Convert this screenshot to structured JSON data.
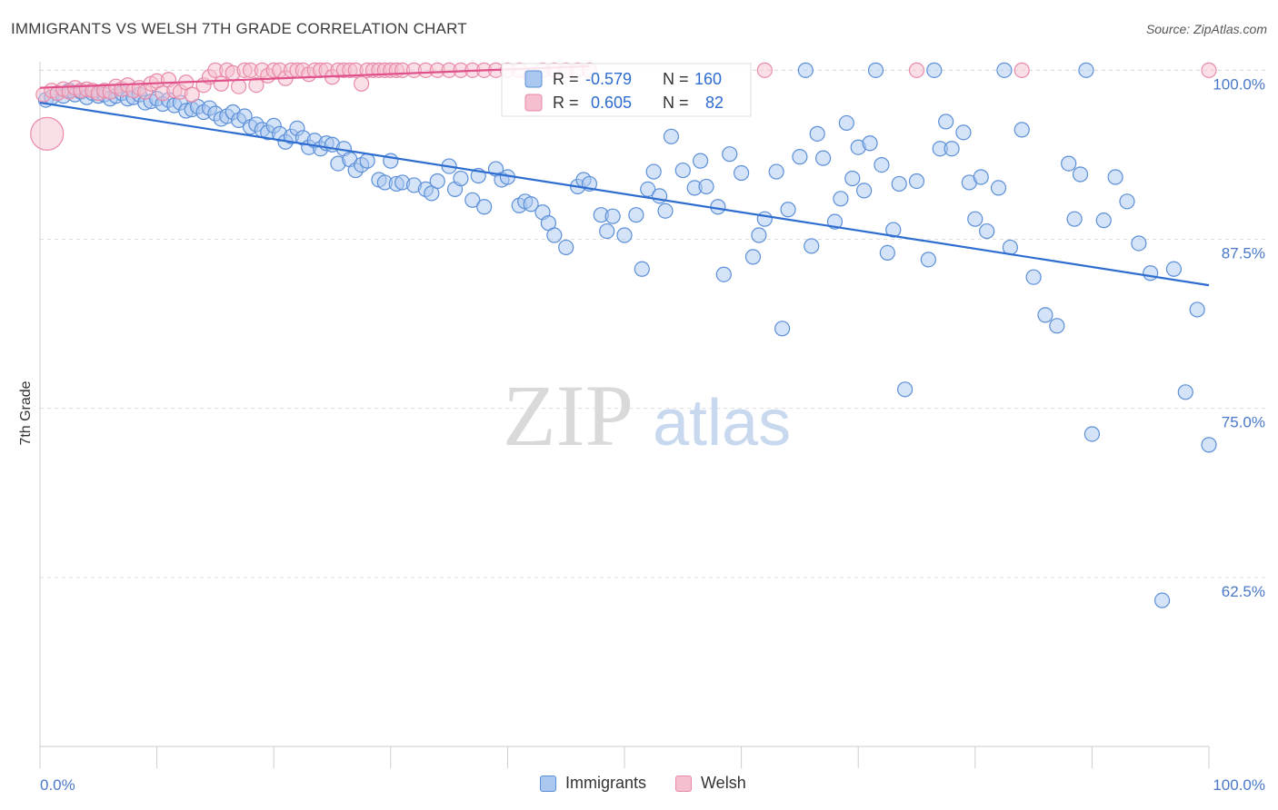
{
  "header": {
    "title": "IMMIGRANTS VS WELSH 7TH GRADE CORRELATION CHART",
    "source": "Source: ZipAtlas.com"
  },
  "watermark": {
    "zip": "ZIP",
    "atlas": "atlas"
  },
  "colors": {
    "blue_fill": "#aac7ef",
    "blue_stroke": "#5b8fd8",
    "blue_line": "#2e6dd0",
    "pink_fill": "#f6bfd0",
    "pink_stroke": "#e88aa8",
    "pink_line": "#e0508a",
    "grid": "#dddddd",
    "axis_label": "#4a78c8"
  },
  "legend": {
    "rows": [
      {
        "r_label": "R =",
        "r_value": "-0.579",
        "n_label": "N =",
        "n_value": "160"
      },
      {
        "r_label": "R =",
        "r_value": "0.605",
        "n_label": "N =",
        "n_value": "82"
      }
    ]
  },
  "bottom_legend": [
    {
      "label": "Immigrants"
    },
    {
      "label": "Welsh"
    }
  ],
  "chart_data": {
    "type": "scatter",
    "title": "IMMIGRANTS VS WELSH 7TH GRADE CORRELATION CHART",
    "xlabel": "",
    "ylabel": "7th Grade",
    "xlim": [
      0,
      100
    ],
    "ylim": [
      50,
      101.5
    ],
    "x_tick_labels": [
      "0.0%",
      "100.0%"
    ],
    "y_ticks": [
      62.5,
      75.0,
      87.5,
      100.0
    ],
    "y_tick_labels": [
      "62.5%",
      "75.0%",
      "87.5%",
      "100.0%"
    ],
    "grid": true,
    "legend_position": "top-center",
    "series": [
      {
        "name": "Immigrants",
        "color": "#5b8fd8",
        "trend": {
          "x": [
            0,
            100
          ],
          "y": [
            97.6,
            84.1
          ]
        },
        "points": [
          [
            0.5,
            97.8
          ],
          [
            1,
            98.0
          ],
          [
            1.5,
            98.3
          ],
          [
            2,
            98.1
          ],
          [
            2.5,
            98.5
          ],
          [
            3,
            98.2
          ],
          [
            3.5,
            98.4
          ],
          [
            4,
            98.0
          ],
          [
            4.5,
            98.3
          ],
          [
            5,
            98.1
          ],
          [
            5.5,
            98.2
          ],
          [
            6,
            97.9
          ],
          [
            6.5,
            98.1
          ],
          [
            7,
            98.3
          ],
          [
            7.5,
            97.9
          ],
          [
            8,
            98.0
          ],
          [
            8.5,
            98.2
          ],
          [
            9,
            97.6
          ],
          [
            9.5,
            97.7
          ],
          [
            10,
            97.9
          ],
          [
            10.5,
            97.5
          ],
          [
            11,
            97.8
          ],
          [
            11.5,
            97.4
          ],
          [
            12,
            97.6
          ],
          [
            12.5,
            97.0
          ],
          [
            13,
            97.1
          ],
          [
            13.5,
            97.3
          ],
          [
            14,
            96.9
          ],
          [
            14.5,
            97.2
          ],
          [
            15,
            96.8
          ],
          [
            15.5,
            96.4
          ],
          [
            16,
            96.6
          ],
          [
            16.5,
            96.9
          ],
          [
            17,
            96.3
          ],
          [
            17.5,
            96.6
          ],
          [
            18,
            95.8
          ],
          [
            18.5,
            96.0
          ],
          [
            19,
            95.6
          ],
          [
            19.5,
            95.4
          ],
          [
            20,
            95.9
          ],
          [
            20.5,
            95.3
          ],
          [
            21,
            94.7
          ],
          [
            21.5,
            95.1
          ],
          [
            22,
            95.7
          ],
          [
            22.5,
            95.0
          ],
          [
            23,
            94.3
          ],
          [
            23.5,
            94.8
          ],
          [
            24,
            94.2
          ],
          [
            24.5,
            94.6
          ],
          [
            25,
            94.5
          ],
          [
            25.5,
            93.1
          ],
          [
            26,
            94.2
          ],
          [
            26.5,
            93.4
          ],
          [
            27,
            92.6
          ],
          [
            27.5,
            93.0
          ],
          [
            28,
            93.3
          ],
          [
            29,
            91.9
          ],
          [
            29.5,
            91.7
          ],
          [
            30,
            93.3
          ],
          [
            30.5,
            91.6
          ],
          [
            31,
            91.7
          ],
          [
            32,
            91.5
          ],
          [
            33,
            91.2
          ],
          [
            33.5,
            90.9
          ],
          [
            34,
            91.8
          ],
          [
            35,
            92.9
          ],
          [
            35.5,
            91.2
          ],
          [
            36,
            92.0
          ],
          [
            37,
            90.4
          ],
          [
            37.5,
            92.2
          ],
          [
            38,
            89.9
          ],
          [
            39,
            92.7
          ],
          [
            39.5,
            91.9
          ],
          [
            40,
            92.1
          ],
          [
            41,
            90.0
          ],
          [
            41.5,
            90.3
          ],
          [
            42,
            90.1
          ],
          [
            43,
            89.5
          ],
          [
            43.5,
            88.7
          ],
          [
            44,
            87.8
          ],
          [
            45,
            86.9
          ],
          [
            46,
            91.4
          ],
          [
            46.5,
            91.9
          ],
          [
            47,
            91.6
          ],
          [
            48,
            89.3
          ],
          [
            48.5,
            88.1
          ],
          [
            49,
            89.2
          ],
          [
            50,
            87.8
          ],
          [
            51,
            89.3
          ],
          [
            51.5,
            85.3
          ],
          [
            52,
            91.2
          ],
          [
            52.5,
            92.5
          ],
          [
            53,
            90.7
          ],
          [
            53.5,
            89.6
          ],
          [
            54,
            95.1
          ],
          [
            55,
            92.6
          ],
          [
            56,
            91.3
          ],
          [
            56.5,
            93.3
          ],
          [
            57,
            91.4
          ],
          [
            58,
            89.9
          ],
          [
            58.5,
            84.9
          ],
          [
            59,
            93.8
          ],
          [
            60,
            92.4
          ],
          [
            61,
            86.2
          ],
          [
            61.5,
            87.8
          ],
          [
            62,
            89.0
          ],
          [
            63,
            92.5
          ],
          [
            63.5,
            80.9
          ],
          [
            64,
            89.7
          ],
          [
            65,
            93.6
          ],
          [
            66,
            87.0
          ],
          [
            66.5,
            95.3
          ],
          [
            67,
            93.5
          ],
          [
            68,
            88.8
          ],
          [
            68.5,
            90.5
          ],
          [
            69,
            96.1
          ],
          [
            69.5,
            92.0
          ],
          [
            70,
            94.3
          ],
          [
            70.5,
            91.1
          ],
          [
            71,
            94.6
          ],
          [
            72,
            93.0
          ],
          [
            72.5,
            86.5
          ],
          [
            73,
            88.2
          ],
          [
            73.5,
            91.6
          ],
          [
            74,
            76.4
          ],
          [
            75,
            91.8
          ],
          [
            76,
            86.0
          ],
          [
            77,
            94.2
          ],
          [
            77.5,
            96.2
          ],
          [
            78,
            94.2
          ],
          [
            79,
            95.4
          ],
          [
            79.5,
            91.7
          ],
          [
            80,
            89.0
          ],
          [
            80.5,
            92.1
          ],
          [
            81,
            88.1
          ],
          [
            82,
            91.3
          ],
          [
            83,
            86.9
          ],
          [
            84,
            95.6
          ],
          [
            85,
            84.7
          ],
          [
            86,
            81.9
          ],
          [
            87,
            81.1
          ],
          [
            88,
            93.1
          ],
          [
            88.5,
            89.0
          ],
          [
            89,
            92.3
          ],
          [
            90,
            73.1
          ],
          [
            91,
            88.9
          ],
          [
            92,
            92.1
          ],
          [
            93,
            90.3
          ],
          [
            94,
            87.2
          ],
          [
            95,
            85.0
          ],
          [
            96,
            60.8
          ],
          [
            97,
            85.3
          ],
          [
            98,
            76.2
          ],
          [
            99,
            82.3
          ],
          [
            100,
            72.3
          ],
          [
            65.5,
            100.0
          ],
          [
            71.5,
            100.0
          ],
          [
            76.5,
            100.0
          ],
          [
            82.5,
            100.0
          ],
          [
            89.5,
            100.0
          ]
        ]
      },
      {
        "name": "Welsh",
        "color": "#e88aa8",
        "trend": {
          "x": [
            0,
            47
          ],
          "y": [
            98.7,
            100.3
          ]
        },
        "points": [
          [
            0.3,
            98.2
          ],
          [
            0.6,
            95.3
          ],
          [
            1,
            98.5
          ],
          [
            1.5,
            98.3
          ],
          [
            2,
            98.6
          ],
          [
            2.5,
            98.4
          ],
          [
            3,
            98.7
          ],
          [
            3.5,
            98.5
          ],
          [
            4,
            98.6
          ],
          [
            4.5,
            98.5
          ],
          [
            5,
            98.3
          ],
          [
            5.5,
            98.5
          ],
          [
            6,
            98.4
          ],
          [
            6.5,
            98.8
          ],
          [
            7,
            98.6
          ],
          [
            7.5,
            98.9
          ],
          [
            8,
            98.5
          ],
          [
            8.5,
            98.7
          ],
          [
            9,
            98.4
          ],
          [
            9.5,
            99.0
          ],
          [
            10,
            99.2
          ],
          [
            10.5,
            98.3
          ],
          [
            11,
            99.3
          ],
          [
            11.5,
            98.5
          ],
          [
            12,
            98.4
          ],
          [
            12.5,
            99.1
          ],
          [
            13,
            98.2
          ],
          [
            14,
            98.9
          ],
          [
            14.5,
            99.5
          ],
          [
            15,
            100.0
          ],
          [
            15.5,
            99.0
          ],
          [
            16,
            100.0
          ],
          [
            16.5,
            99.8
          ],
          [
            17,
            98.8
          ],
          [
            17.5,
            100.0
          ],
          [
            18,
            100.0
          ],
          [
            18.5,
            98.9
          ],
          [
            19,
            100.0
          ],
          [
            19.5,
            99.6
          ],
          [
            20,
            100.0
          ],
          [
            20.5,
            100.0
          ],
          [
            21,
            99.4
          ],
          [
            21.5,
            100.0
          ],
          [
            22,
            100.0
          ],
          [
            22.5,
            100.0
          ],
          [
            23,
            99.7
          ],
          [
            23.5,
            100.0
          ],
          [
            24,
            100.0
          ],
          [
            24.5,
            100.0
          ],
          [
            25,
            99.5
          ],
          [
            25.5,
            100.0
          ],
          [
            26,
            100.0
          ],
          [
            26.5,
            100.0
          ],
          [
            27,
            100.0
          ],
          [
            27.5,
            99.0
          ],
          [
            28,
            100.0
          ],
          [
            28.5,
            100.0
          ],
          [
            29,
            100.0
          ],
          [
            29.5,
            100.0
          ],
          [
            30,
            100.0
          ],
          [
            30.5,
            100.0
          ],
          [
            31,
            100.0
          ],
          [
            32,
            100.0
          ],
          [
            33,
            100.0
          ],
          [
            34,
            100.0
          ],
          [
            35,
            100.0
          ],
          [
            36,
            100.0
          ],
          [
            37,
            100.0
          ],
          [
            38,
            100.0
          ],
          [
            39,
            100.0
          ],
          [
            40,
            100.0
          ],
          [
            41,
            100.0
          ],
          [
            42,
            99.6
          ],
          [
            43,
            100.0
          ],
          [
            44,
            100.0
          ],
          [
            45,
            100.0
          ],
          [
            46,
            100.0
          ],
          [
            47,
            100.0
          ],
          [
            62,
            100.0
          ],
          [
            75,
            100.0
          ],
          [
            84,
            100.0
          ],
          [
            100,
            100.0
          ]
        ]
      }
    ]
  }
}
